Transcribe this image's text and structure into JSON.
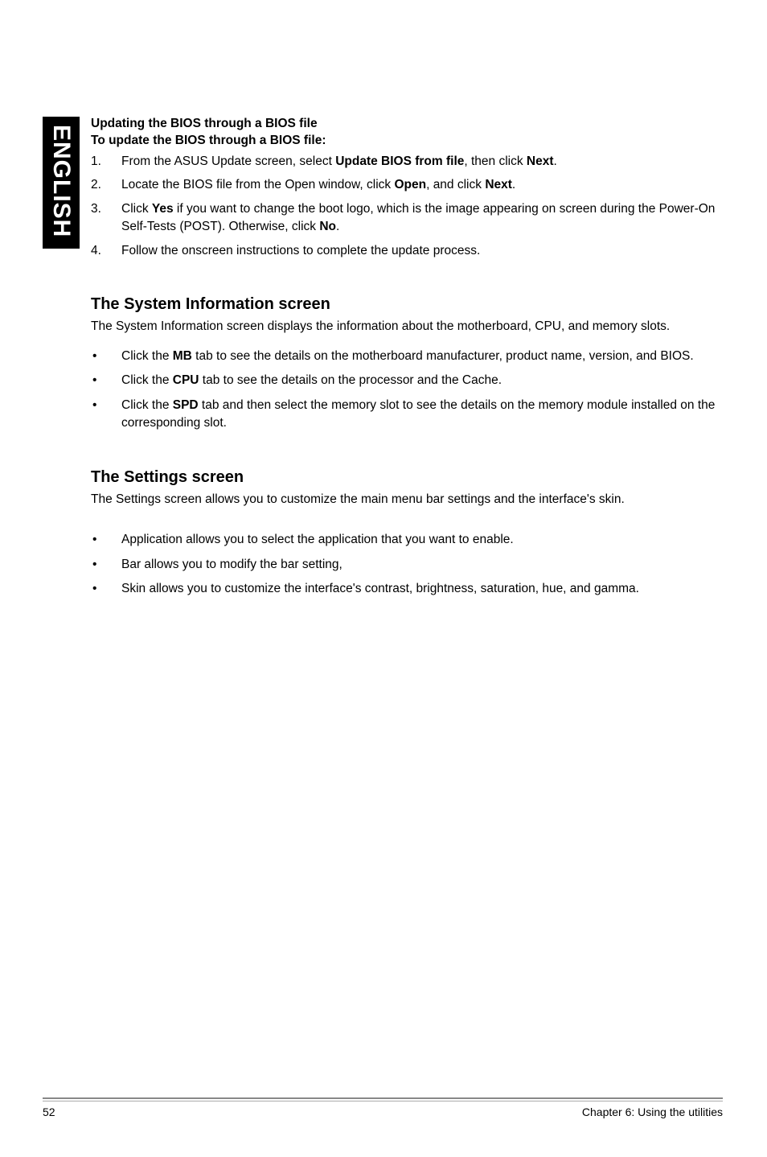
{
  "side_tab": "ENGLISH",
  "section1": {
    "heading1": "Updating the BIOS through a BIOS file",
    "heading2": "To update the BIOS through a BIOS file:",
    "items": [
      {
        "num": "1.",
        "html": "From the ASUS Update screen, select <b>Update BIOS from file</b>, then click <b>Next</b>."
      },
      {
        "num": "2.",
        "html": "Locate the BIOS file from the Open window, click <b>Open</b>, and click <b>Next</b>."
      },
      {
        "num": "3.",
        "html": "Click <b>Yes</b> if you want to change the boot logo, which is the image appearing on screen during the Power-On Self-Tests (POST). Otherwise, click <b>No</b>."
      },
      {
        "num": "4.",
        "html": "Follow the onscreen instructions to complete the update process."
      }
    ]
  },
  "section2": {
    "title": "The System Information screen",
    "intro": "The System Information screen displays the information about the motherboard, CPU, and memory slots.",
    "bullets": [
      {
        "html": "Click the <b>MB</b> tab to see the details on the motherboard manufacturer, product name, version, and BIOS."
      },
      {
        "html": "Click the <b>CPU</b> tab to see the details on the processor and the Cache."
      },
      {
        "html": "Click the <b>SPD</b> tab and then select the memory slot to see the details on the memory module installed on the corresponding slot."
      }
    ]
  },
  "section3": {
    "title": "The Settings screen",
    "intro": "The Settings screen allows you to customize the main menu bar settings and the interface's skin.",
    "bullets": [
      {
        "html": "Application allows you to select the application that you want to enable."
      },
      {
        "html": "Bar allows you to modify the bar setting,"
      },
      {
        "html": "Skin allows you to customize the interface's contrast, brightness, saturation, hue, and gamma."
      }
    ]
  },
  "footer": {
    "page": "52",
    "chapter": "Chapter 6: Using the utilities"
  }
}
